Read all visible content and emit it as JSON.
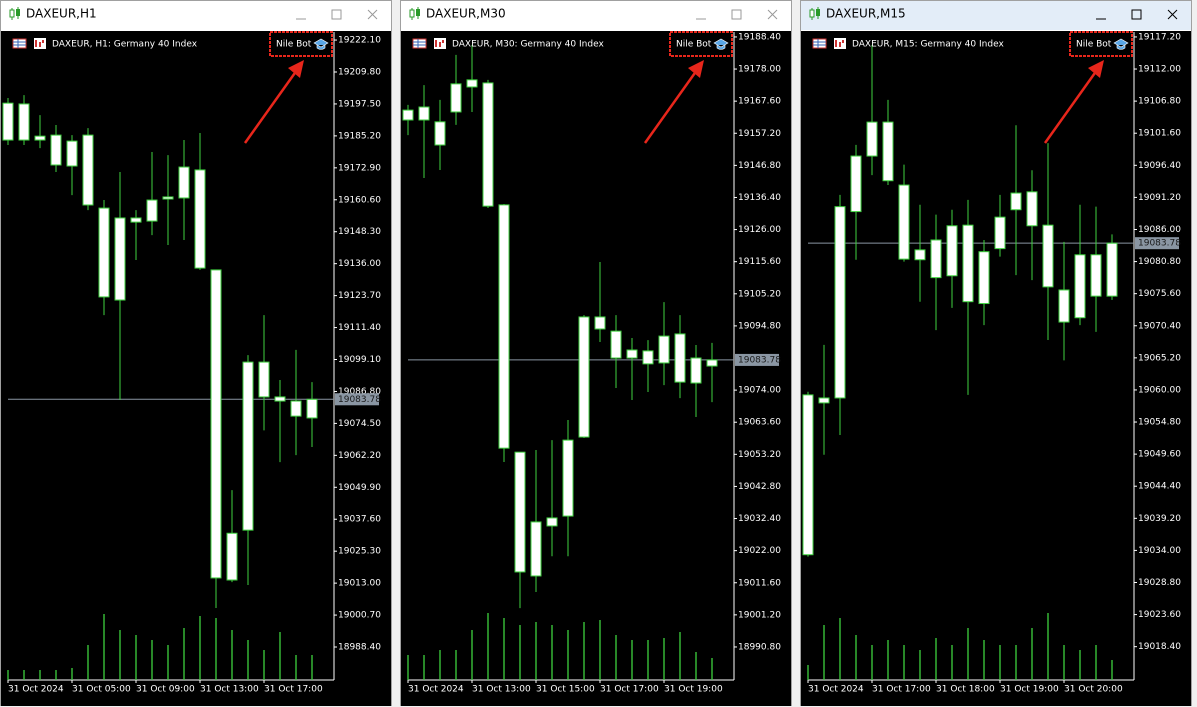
{
  "windows": [
    {
      "title": "DAXEUR,H1",
      "header": "DAXEUR, H1:  Germany 40 Index",
      "bot_label": "Nile Bot",
      "active": false,
      "ylim": [
        18975.7,
        19225.2
      ],
      "current_price": 19083.78,
      "price_ticks": [
        {
          "value": 19222.1,
          "label": "19222.10"
        },
        {
          "value": 19209.8,
          "label": "19209.80"
        },
        {
          "value": 19197.5,
          "label": "19197.50"
        },
        {
          "value": 19185.2,
          "label": "19185.20"
        },
        {
          "value": 19172.9,
          "label": "19172.90"
        },
        {
          "value": 19160.6,
          "label": "19160.60"
        },
        {
          "value": 19148.3,
          "label": "19148.30"
        },
        {
          "value": 19136,
          "label": "19136.00"
        },
        {
          "value": 19123.7,
          "label": "19123.70"
        },
        {
          "value": 19111.4,
          "label": "19111.40"
        },
        {
          "value": 19099.1,
          "label": "19099.10"
        },
        {
          "value": 19086.8,
          "label": "19086.80"
        },
        {
          "value": 19074.5,
          "label": "19074.50"
        },
        {
          "value": 19062.2,
          "label": "19062.20"
        },
        {
          "value": 19049.9,
          "label": "19049.90"
        },
        {
          "value": 19037.6,
          "label": "19037.60"
        },
        {
          "value": 19025.3,
          "label": "19025.30"
        },
        {
          "value": 19013,
          "label": "19013.00"
        },
        {
          "value": 19000.7,
          "label": "19000.70"
        },
        {
          "value": 18988.4,
          "label": "18988.40"
        }
      ],
      "time_labels": [
        "31 Oct 2024",
        "31 Oct 05:00",
        "31 Oct 09:00",
        "31 Oct 13:00",
        "31 Oct 17:00"
      ],
      "candles": [
        {
          "o": 19197.8,
          "h": 19199.8,
          "l": 19181.7,
          "c": 19183.6
        },
        {
          "o": 19183.6,
          "h": 19200.9,
          "l": 19181.7,
          "c": 19197.5
        },
        {
          "o": 19185.1,
          "h": 19193.2,
          "l": 19180.5,
          "c": 19183.6
        },
        {
          "o": 19185.5,
          "h": 19189.4,
          "l": 19171.3,
          "c": 19174.0
        },
        {
          "o": 19173.6,
          "h": 19185.5,
          "l": 19162.4,
          "c": 19183.2
        },
        {
          "o": 19185.5,
          "h": 19188.2,
          "l": 19156.6,
          "c": 19158.6
        },
        {
          "o": 19157.4,
          "h": 19160.5,
          "l": 19116.2,
          "c": 19123.2
        },
        {
          "o": 19122.0,
          "h": 19171.3,
          "l": 19083.5,
          "c": 19153.6
        },
        {
          "o": 19153.6,
          "h": 19156.6,
          "l": 19137.4,
          "c": 19152.0
        },
        {
          "o": 19152.4,
          "h": 19179.0,
          "l": 19147.0,
          "c": 19160.5
        },
        {
          "o": 19160.9,
          "h": 19177.8,
          "l": 19143.2,
          "c": 19161.7
        },
        {
          "o": 19161.3,
          "h": 19183.6,
          "l": 19145.1,
          "c": 19173.2
        },
        {
          "o": 19172.1,
          "h": 19186.3,
          "l": 19133.6,
          "c": 19134.3
        },
        {
          "o": 19133.6,
          "h": 19133.6,
          "l": 19003.4,
          "c": 19015.0
        },
        {
          "o": 19014.2,
          "h": 19048.8,
          "l": 19013.4,
          "c": 19032.2
        },
        {
          "o": 19033.4,
          "h": 19100.8,
          "l": 19012.3,
          "c": 19098.1
        },
        {
          "o": 19098.1,
          "h": 19116.2,
          "l": 19071.8,
          "c": 19084.7
        },
        {
          "o": 19084.7,
          "h": 19091.2,
          "l": 19059.6,
          "c": 19083.1
        },
        {
          "o": 19083.1,
          "h": 19102.8,
          "l": 19062.3,
          "c": 19077.3
        },
        {
          "o": 19076.6,
          "h": 19090.4,
          "l": 19065.4,
          "c": 19083.78
        }
      ],
      "volumes": [
        10,
        10,
        10,
        10,
        12,
        35,
        66,
        50,
        45,
        40,
        35,
        52,
        64,
        62,
        50,
        40,
        30,
        48,
        25,
        25
      ]
    },
    {
      "title": "DAXEUR,M30",
      "header": "DAXEUR, M30:  Germany 40 Index",
      "bot_label": "Nile Bot",
      "active": false,
      "ylim": [
        18980.1,
        19190.0
      ],
      "current_price": 19083.78,
      "price_ticks": [
        {
          "value": 19188.4,
          "label": "19188.40"
        },
        {
          "value": 19178,
          "label": "19178.00"
        },
        {
          "value": 19167.6,
          "label": "19167.60"
        },
        {
          "value": 19157.2,
          "label": "19157.20"
        },
        {
          "value": 19146.8,
          "label": "19146.80"
        },
        {
          "value": 19136.4,
          "label": "19136.40"
        },
        {
          "value": 19126,
          "label": "19126.00"
        },
        {
          "value": 19115.6,
          "label": "19115.60"
        },
        {
          "value": 19105.2,
          "label": "19105.20"
        },
        {
          "value": 19094.8,
          "label": "19094.80"
        },
        {
          "value": 19074,
          "label": "19074.00"
        },
        {
          "value": 19063.6,
          "label": "19063.60"
        },
        {
          "value": 19053.2,
          "label": "19053.20"
        },
        {
          "value": 19042.8,
          "label": "19042.80"
        },
        {
          "value": 19032.4,
          "label": "19032.40"
        },
        {
          "value": 19022,
          "label": "19022.00"
        },
        {
          "value": 19011.6,
          "label": "19011.60"
        },
        {
          "value": 19001.2,
          "label": "19001.20"
        },
        {
          "value": 18990.8,
          "label": "18990.80"
        }
      ],
      "time_labels": [
        "31 Oct 2024",
        "31 Oct 13:00",
        "31 Oct 15:00",
        "31 Oct 17:00",
        "31 Oct 19:00"
      ],
      "candles": [
        {
          "o": 19161.5,
          "h": 19166.4,
          "l": 19156.6,
          "c": 19164.7
        },
        {
          "o": 19165.7,
          "h": 19172.8,
          "l": 19142.7,
          "c": 19161.5
        },
        {
          "o": 19160.9,
          "h": 19168.0,
          "l": 19145.3,
          "c": 19153.4
        },
        {
          "o": 19164.1,
          "h": 19182.6,
          "l": 19159.9,
          "c": 19173.2
        },
        {
          "o": 19172.2,
          "h": 19185.8,
          "l": 19164.1,
          "c": 19174.5
        },
        {
          "o": 19173.5,
          "h": 19174.5,
          "l": 19133.0,
          "c": 19133.6
        },
        {
          "o": 19134.0,
          "h": 19134.3,
          "l": 19050.7,
          "c": 19055.2
        },
        {
          "o": 19053.9,
          "h": 19053.9,
          "l": 19003.4,
          "c": 19015.1
        },
        {
          "o": 19013.8,
          "h": 19054.6,
          "l": 19008.6,
          "c": 19031.3
        },
        {
          "o": 19030.0,
          "h": 19057.8,
          "l": 19020.2,
          "c": 19032.6
        },
        {
          "o": 19033.2,
          "h": 19064.3,
          "l": 19020.2,
          "c": 19057.8
        },
        {
          "o": 19058.8,
          "h": 19098.3,
          "l": 19058.5,
          "c": 19097.7
        },
        {
          "o": 19097.7,
          "h": 19115.5,
          "l": 19089.6,
          "c": 19093.8
        },
        {
          "o": 19093.1,
          "h": 19098.3,
          "l": 19074.7,
          "c": 19084.4
        },
        {
          "o": 19084.4,
          "h": 19090.9,
          "l": 19070.8,
          "c": 19087.0
        },
        {
          "o": 19086.7,
          "h": 19090.2,
          "l": 19073.4,
          "c": 19082.5
        },
        {
          "o": 19082.8,
          "h": 19102.5,
          "l": 19075.6,
          "c": 19091.5
        },
        {
          "o": 19092.2,
          "h": 19098.3,
          "l": 19071.4,
          "c": 19076.6
        },
        {
          "o": 19076.3,
          "h": 19088.6,
          "l": 19065.3,
          "c": 19084.4
        },
        {
          "o": 19081.8,
          "h": 19089.3,
          "l": 19070.1,
          "c": 19083.78
        }
      ],
      "volumes": [
        25,
        25,
        30,
        30,
        50,
        67,
        62,
        55,
        58,
        55,
        50,
        58,
        60,
        45,
        40,
        40,
        42,
        48,
        28,
        22
      ]
    },
    {
      "title": "DAXEUR,M15",
      "header": "DAXEUR, M15:  Germany 40 Index",
      "bot_label": "Nile Bot",
      "active": true,
      "ylim": [
        19013.0,
        19118.0
      ],
      "current_price": 19083.78,
      "price_ticks": [
        {
          "value": 19117.2,
          "label": "19117.20"
        },
        {
          "value": 19112,
          "label": "19112.00"
        },
        {
          "value": 19106.8,
          "label": "19106.80"
        },
        {
          "value": 19101.6,
          "label": "19101.60"
        },
        {
          "value": 19096.4,
          "label": "19096.40"
        },
        {
          "value": 19091.2,
          "label": "19091.20"
        },
        {
          "value": 19086,
          "label": "19086.00"
        },
        {
          "value": 19080.8,
          "label": "19080.80"
        },
        {
          "value": 19075.6,
          "label": "19075.60"
        },
        {
          "value": 19070.4,
          "label": "19070.40"
        },
        {
          "value": 19065.2,
          "label": "19065.20"
        },
        {
          "value": 19060,
          "label": "19060.00"
        },
        {
          "value": 19054.8,
          "label": "19054.80"
        },
        {
          "value": 19049.6,
          "label": "19049.60"
        },
        {
          "value": 19044.4,
          "label": "19044.40"
        },
        {
          "value": 19039.2,
          "label": "19039.20"
        },
        {
          "value": 19034,
          "label": "19034.00"
        },
        {
          "value": 19028.8,
          "label": "19028.80"
        },
        {
          "value": 19023.6,
          "label": "19023.60"
        },
        {
          "value": 19018.4,
          "label": "19018.40"
        }
      ],
      "time_labels": [
        "31 Oct 2024",
        "31 Oct 17:00",
        "31 Oct 18:00",
        "31 Oct 19:00",
        "31 Oct 20:00"
      ],
      "candles": [
        {
          "o": 19033.3,
          "h": 19059.7,
          "l": 19033.0,
          "c": 19059.2
        },
        {
          "o": 19058.7,
          "h": 19067.3,
          "l": 19049.5,
          "c": 19057.9
        },
        {
          "o": 19058.7,
          "h": 19091.6,
          "l": 19052.7,
          "c": 19089.7
        },
        {
          "o": 19088.9,
          "h": 19099.7,
          "l": 19081.1,
          "c": 19097.9
        },
        {
          "o": 19097.9,
          "h": 19115.9,
          "l": 19094.8,
          "c": 19103.4
        },
        {
          "o": 19103.4,
          "h": 19107.0,
          "l": 19093.2,
          "c": 19093.9
        },
        {
          "o": 19093.2,
          "h": 19096.5,
          "l": 19080.8,
          "c": 19081.2
        },
        {
          "o": 19081.1,
          "h": 19090.0,
          "l": 19074.3,
          "c": 19082.7
        },
        {
          "o": 19078.2,
          "h": 19088.4,
          "l": 19069.7,
          "c": 19084.3
        },
        {
          "o": 19086.6,
          "h": 19089.2,
          "l": 19073.3,
          "c": 19078.5
        },
        {
          "o": 19074.3,
          "h": 19090.8,
          "l": 19059.2,
          "c": 19086.7
        },
        {
          "o": 19082.4,
          "h": 19084.3,
          "l": 19070.5,
          "c": 19074.0
        },
        {
          "o": 19082.9,
          "h": 19091.6,
          "l": 19081.6,
          "c": 19088.0
        },
        {
          "o": 19089.2,
          "h": 19102.9,
          "l": 19078.6,
          "c": 19091.9
        },
        {
          "o": 19092.1,
          "h": 19095.6,
          "l": 19077.8,
          "c": 19086.6
        },
        {
          "o": 19086.7,
          "h": 19100.0,
          "l": 19068.1,
          "c": 19076.7
        },
        {
          "o": 19076.2,
          "h": 19084.0,
          "l": 19064.8,
          "c": 19071.0
        },
        {
          "o": 19071.7,
          "h": 19090.0,
          "l": 19070.5,
          "c": 19081.9
        },
        {
          "o": 19081.9,
          "h": 19089.7,
          "l": 19069.4,
          "c": 19075.2
        },
        {
          "o": 19075.2,
          "h": 19085.2,
          "l": 19074.6,
          "c": 19083.78
        }
      ],
      "volumes": [
        15,
        55,
        62,
        45,
        35,
        40,
        35,
        30,
        42,
        35,
        52,
        40,
        35,
        35,
        52,
        67,
        35,
        30,
        35,
        20
      ]
    }
  ]
}
